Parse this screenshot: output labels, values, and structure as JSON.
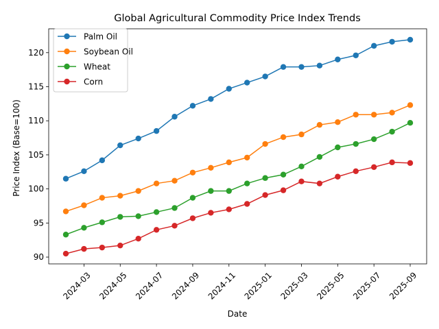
{
  "chart_data": {
    "type": "line",
    "title": "Global Agricultural Commodity Price Index Trends",
    "xlabel": "Date",
    "ylabel": "Price Index (Base=100)",
    "ylim": [
      89,
      123.5
    ],
    "yticks": [
      90,
      95,
      100,
      105,
      110,
      115,
      120
    ],
    "xticks": [
      "2024-03",
      "2024-05",
      "2024-07",
      "2024-09",
      "2024-11",
      "2025-01",
      "2025-03",
      "2025-05",
      "2025-07",
      "2025-09"
    ],
    "x": [
      "2024-02",
      "2024-03",
      "2024-04",
      "2024-05",
      "2024-06",
      "2024-07",
      "2024-08",
      "2024-09",
      "2024-10",
      "2024-11",
      "2024-12",
      "2025-01",
      "2025-02",
      "2025-03",
      "2025-04",
      "2025-05",
      "2025-06",
      "2025-07",
      "2025-08",
      "2025-09"
    ],
    "legend_position": "upper-left",
    "grid": false,
    "series": [
      {
        "name": "Palm Oil",
        "color": "#1f77b4",
        "values": [
          101.5,
          102.6,
          104.2,
          106.4,
          107.4,
          108.5,
          110.6,
          112.2,
          113.2,
          114.7,
          115.6,
          116.5,
          117.9,
          117.9,
          118.1,
          119.0,
          119.6,
          121.0,
          121.6,
          121.9
        ]
      },
      {
        "name": "Soybean Oil",
        "color": "#ff7f0e",
        "values": [
          96.7,
          97.6,
          98.7,
          99.0,
          99.7,
          100.8,
          101.2,
          102.4,
          103.1,
          103.9,
          104.6,
          106.6,
          107.6,
          108.0,
          109.4,
          109.8,
          110.9,
          110.9,
          111.2,
          112.3
        ]
      },
      {
        "name": "Wheat",
        "color": "#2ca02c",
        "values": [
          93.3,
          94.3,
          95.1,
          95.9,
          96.0,
          96.6,
          97.2,
          98.7,
          99.7,
          99.7,
          100.8,
          101.6,
          102.1,
          103.3,
          104.7,
          106.1,
          106.6,
          107.3,
          108.4,
          109.7
        ]
      },
      {
        "name": "Corn",
        "color": "#d62728",
        "values": [
          90.5,
          91.2,
          91.4,
          91.7,
          92.7,
          94.0,
          94.6,
          95.7,
          96.5,
          97.0,
          97.8,
          99.1,
          99.8,
          101.1,
          100.8,
          101.8,
          102.6,
          103.2,
          103.9,
          103.8
        ]
      }
    ]
  }
}
